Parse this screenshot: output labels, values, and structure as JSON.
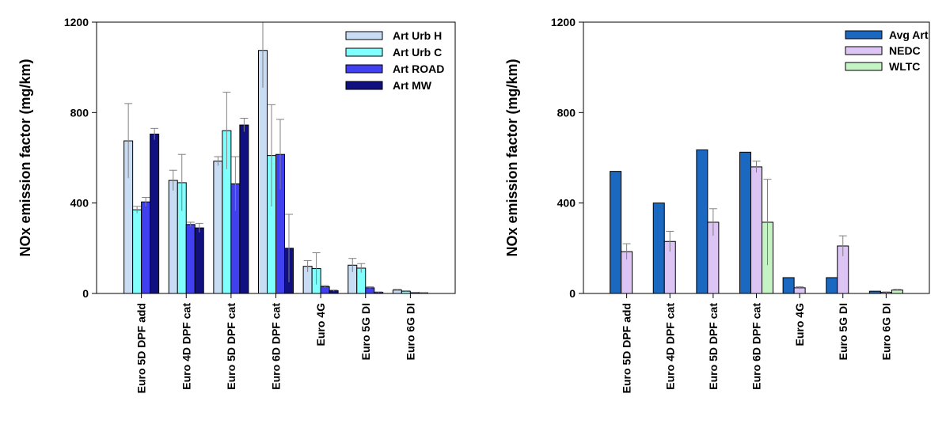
{
  "chart_data": [
    {
      "type": "bar",
      "ylabel": "NOx emission factor (mg/km)",
      "ylim": [
        0,
        1200
      ],
      "yticks": [
        0,
        400,
        800,
        1200
      ],
      "legend_position": "top-right",
      "categories": [
        "Euro 5D DPF add",
        "Euro 4D DPF cat",
        "Euro 5D DPF cat",
        "Euro 6D DPF cat",
        "Euro 4G",
        "Euro 5G DI",
        "Euro 6G DI"
      ],
      "series": [
        {
          "name": "Art Urb H",
          "color": "#c8dcf4",
          "values": [
            675,
            500,
            585,
            1075,
            120,
            125,
            15
          ],
          "errors": [
            165,
            45,
            20,
            165,
            25,
            30,
            3
          ]
        },
        {
          "name": "Art Urb C",
          "color": "#80ffff",
          "values": [
            370,
            490,
            720,
            610,
            110,
            112,
            10
          ],
          "errors": [
            15,
            125,
            170,
            225,
            70,
            20,
            2
          ]
        },
        {
          "name": "Art ROAD",
          "color": "#4040f0",
          "values": [
            405,
            305,
            485,
            615,
            30,
            25,
            4
          ],
          "errors": [
            20,
            10,
            120,
            155,
            5,
            5,
            1
          ]
        },
        {
          "name": "Art MW",
          "color": "#101080",
          "values": [
            705,
            290,
            745,
            200,
            12,
            5,
            3
          ],
          "errors": [
            25,
            20,
            30,
            150,
            3,
            2,
            1
          ]
        }
      ]
    },
    {
      "type": "bar",
      "ylabel": "NOx emission factor (mg/km)",
      "ylim": [
        0,
        1200
      ],
      "yticks": [
        0,
        400,
        800,
        1200
      ],
      "legend_position": "top-right",
      "categories": [
        "Euro 5D DPF add",
        "Euro 4D DPF cat",
        "Euro 5D DPF cat",
        "Euro 6D DPF cat",
        "Euro 4G",
        "Euro 5G DI",
        "Euro 6G DI"
      ],
      "series": [
        {
          "name": "Avg Art",
          "color": "#1a68c0",
          "values": [
            540,
            400,
            635,
            625,
            70,
            70,
            10
          ],
          "errors": [
            0,
            0,
            0,
            0,
            0,
            0,
            0
          ]
        },
        {
          "name": "NEDC",
          "color": "#dcc4f4",
          "values": [
            185,
            230,
            315,
            560,
            25,
            210,
            5
          ],
          "errors": [
            35,
            45,
            60,
            25,
            5,
            45,
            2
          ]
        },
        {
          "name": "WLTC",
          "color": "#c4f4c4",
          "values": [
            0,
            0,
            0,
            315,
            0,
            0,
            15
          ],
          "errors": [
            0,
            0,
            0,
            190,
            0,
            0,
            3
          ]
        }
      ]
    }
  ]
}
